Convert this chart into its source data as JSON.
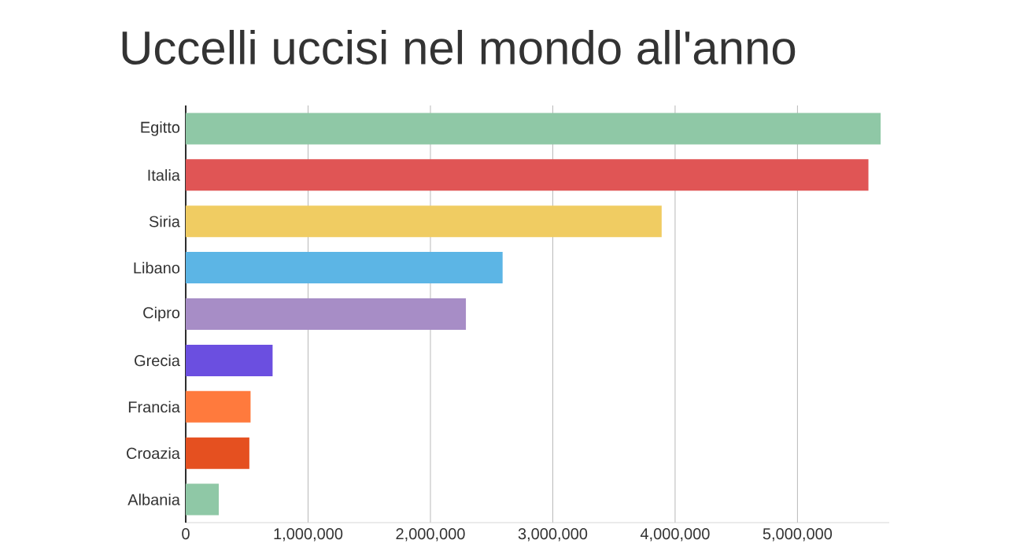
{
  "chart_data": {
    "type": "bar",
    "orientation": "horizontal",
    "title": "Uccelli uccisi nel mondo all'anno",
    "categories": [
      "Egitto",
      "Italia",
      "Siria",
      "Libano",
      "Cipro",
      "Grecia",
      "Francia",
      "Croazia",
      "Albania"
    ],
    "values": [
      5680000,
      5580000,
      3890000,
      2590000,
      2290000,
      710000,
      530000,
      520000,
      270000
    ],
    "colors": [
      "#8fc8a6",
      "#e05555",
      "#f0cc62",
      "#5cb5e5",
      "#a78dc6",
      "#6b4fe0",
      "#ff7a3d",
      "#e55020",
      "#8fc8a6"
    ],
    "xlim": [
      0,
      5750000
    ],
    "xticks": [
      {
        "value": 0,
        "label": "0"
      },
      {
        "value": 1000000,
        "label": "1,000,000"
      },
      {
        "value": 2000000,
        "label": "2,000,000"
      },
      {
        "value": 3000000,
        "label": "3,000,000"
      },
      {
        "value": 4000000,
        "label": "4,000,000"
      },
      {
        "value": 5000000,
        "label": "5,000,000"
      }
    ],
    "grid": "x"
  }
}
